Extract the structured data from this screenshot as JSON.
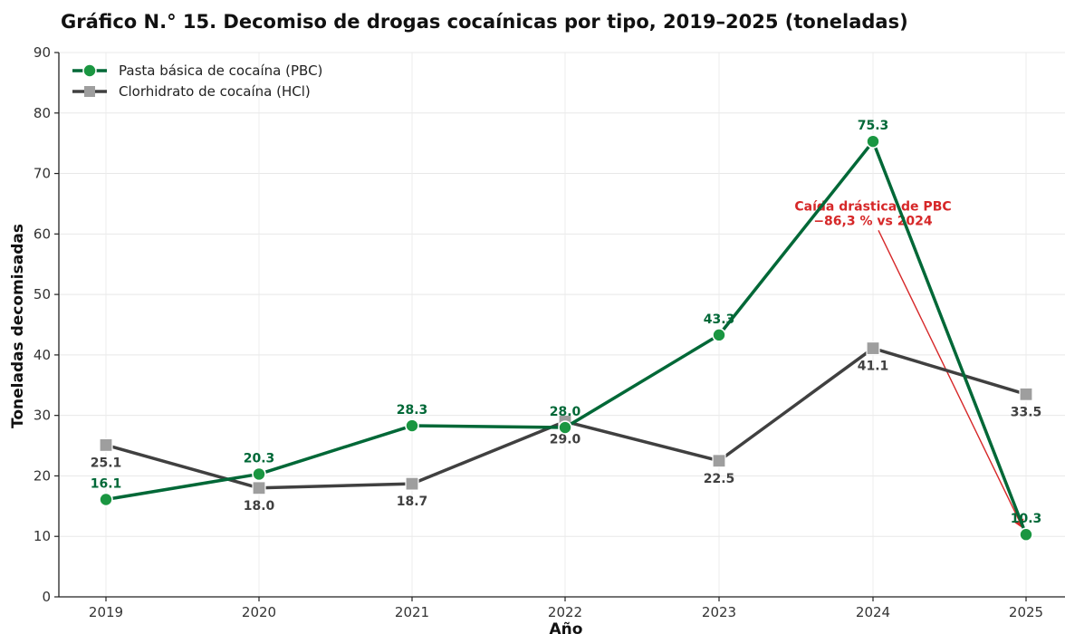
{
  "chart_data": {
    "type": "line",
    "title": "Gráfico N.° 15. Decomiso de drogas cocaínicas por tipo, 2019–2025 (toneladas)",
    "xlabel": "Año",
    "ylabel": "Toneladas decomisadas",
    "x": [
      "2019",
      "2020",
      "2021",
      "2022",
      "2023",
      "2024",
      "2025"
    ],
    "ylim": [
      0,
      90
    ],
    "yticks": [
      0,
      10,
      20,
      30,
      40,
      50,
      60,
      70,
      80,
      90
    ],
    "grid": true,
    "legend_position": "top-left",
    "series": [
      {
        "name": "Pasta básica de cocaína (PBC)",
        "values": [
          16.1,
          20.3,
          28.3,
          28.0,
          43.3,
          75.3,
          10.3
        ],
        "labels": [
          "16.1",
          "20.3",
          "28.3",
          "28.0",
          "43.3",
          "75.3",
          "10.3"
        ],
        "color": "#006837",
        "marker_color": "#1a9641",
        "marker": "circle",
        "label_position": "above"
      },
      {
        "name": "Clorhidrato de cocaína (HCl)",
        "values": [
          25.1,
          18.0,
          18.7,
          29.0,
          22.5,
          41.1,
          33.5
        ],
        "labels": [
          "25.1",
          "18.0",
          "18.7",
          "29.0",
          "22.5",
          "41.1",
          "33.5"
        ],
        "color": "#404040",
        "marker_color": "#9e9e9e",
        "marker": "square",
        "label_position": "below"
      }
    ],
    "annotations": [
      {
        "lines": [
          "Caída drástica de PBC",
          "−86,3 % vs 2024"
        ],
        "color": "#d62728",
        "text_at": {
          "x": "2024",
          "y": 61.5
        },
        "arrow_to": {
          "x": "2025",
          "y": 10.3
        }
      }
    ]
  }
}
